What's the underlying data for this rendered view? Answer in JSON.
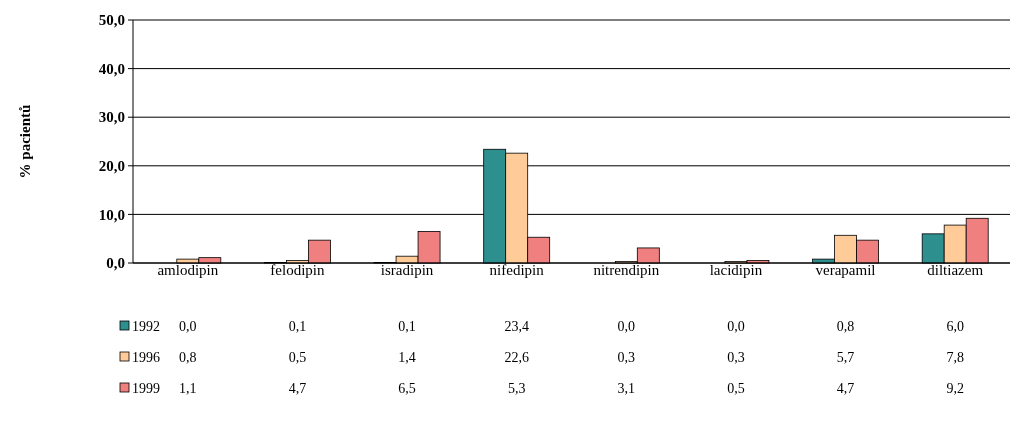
{
  "chart_data": {
    "type": "bar",
    "ylabel": "% pacientů",
    "categories": [
      "amlodipin",
      "felodipin",
      "isradipin",
      "nifedipin",
      "nitrendipin",
      "lacidipin",
      "verapamil",
      "diltiazem"
    ],
    "series": [
      {
        "name": "1992",
        "color": "#2e8f8f",
        "values": [
          0.0,
          0.1,
          0.1,
          23.4,
          0.0,
          0.0,
          0.8,
          6.0
        ],
        "value_labels": [
          "0,0",
          "0,1",
          "0,1",
          "23,4",
          "0,0",
          "0,0",
          "0,8",
          "6,0"
        ]
      },
      {
        "name": "1996",
        "color": "#ffcc99",
        "values": [
          0.8,
          0.5,
          1.4,
          22.6,
          0.3,
          0.3,
          5.7,
          7.8
        ],
        "value_labels": [
          "0,8",
          "0,5",
          "1,4",
          "22,6",
          "0,3",
          "0,3",
          "5,7",
          "7,8"
        ]
      },
      {
        "name": "1999",
        "color": "#f08080",
        "values": [
          1.1,
          4.7,
          6.5,
          5.3,
          3.1,
          0.5,
          4.7,
          9.2
        ],
        "value_labels": [
          "1,1",
          "4,7",
          "6,5",
          "5,3",
          "3,1",
          "0,5",
          "4,7",
          "9,2"
        ]
      }
    ],
    "ylim": [
      0,
      50
    ],
    "yticks": [
      {
        "value": 0,
        "label": "0,0"
      },
      {
        "value": 10,
        "label": "10,0"
      },
      {
        "value": 20,
        "label": "20,0"
      },
      {
        "value": 30,
        "label": "30,0"
      },
      {
        "value": 40,
        "label": "40,0"
      },
      {
        "value": 50,
        "label": "50,0"
      }
    ],
    "grid": "y",
    "legend": "bottom"
  }
}
